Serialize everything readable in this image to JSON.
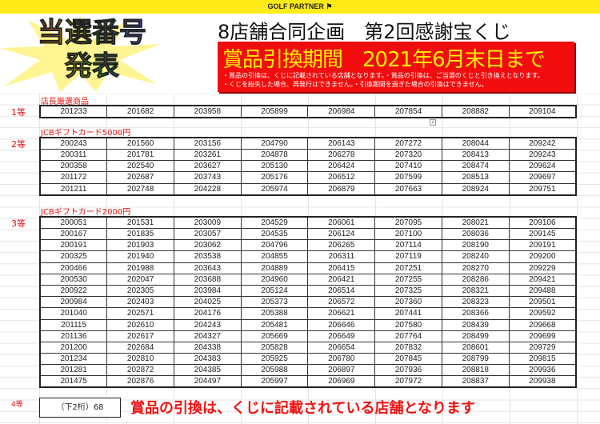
{
  "header": {
    "brand": "GOLF PARTNER",
    "logo_line1": "当選番号",
    "logo_line2": "発表",
    "title": "8店舗合同企画　第2回感謝宝くじ",
    "period": "賞品引換期間　2021年6月末日まで",
    "note1": "・賞品の引換は、くじに記載されている店舗となります。・賞品の引換は、ご当選のくじと引き換えとなります。",
    "note2": "・くじを紛失した場合、再発行はできません。・引換期間を過ぎた場合の引換はできません。",
    "colors": {
      "topbar": "#ffeb17",
      "redbox": "#f10d0d",
      "period": "#ffee00",
      "accent": "#e01010"
    }
  },
  "prizes": [
    {
      "rank": "1等",
      "name": "店長厳選商品",
      "rows": [
        [
          "201233",
          "201682",
          "203958",
          "205899",
          "206984",
          "207854",
          "208882",
          "209104"
        ]
      ]
    },
    {
      "rank": "2等",
      "name": "JCBギフトカード5000円",
      "rows": [
        [
          "200243",
          "201560",
          "203156",
          "204790",
          "206143",
          "207272",
          "208044",
          "209242"
        ],
        [
          "200311",
          "201781",
          "203261",
          "204878",
          "206278",
          "207320",
          "208413",
          "209243"
        ],
        [
          "200358",
          "202540",
          "203627",
          "205130",
          "206424",
          "207410",
          "208474",
          "209624"
        ],
        [
          "201172",
          "202687",
          "203743",
          "205176",
          "206512",
          "207599",
          "208513",
          "209697"
        ],
        [
          "201211",
          "202748",
          "204228",
          "205974",
          "206879",
          "207663",
          "208924",
          "209751"
        ]
      ]
    },
    {
      "rank": "3等",
      "name": "JCBギフトカード2000円",
      "rows": [
        [
          "200051",
          "201531",
          "203009",
          "204529",
          "206061",
          "207095",
          "208021",
          "209106"
        ],
        [
          "200167",
          "201835",
          "203057",
          "204535",
          "206124",
          "207100",
          "208036",
          "209145"
        ],
        [
          "200191",
          "201903",
          "203062",
          "204796",
          "206265",
          "207114",
          "208190",
          "209191"
        ],
        [
          "200325",
          "201940",
          "203538",
          "204855",
          "206311",
          "207119",
          "208240",
          "209200"
        ],
        [
          "200466",
          "201988",
          "203643",
          "204889",
          "206415",
          "207251",
          "208270",
          "209229"
        ],
        [
          "200530",
          "202047",
          "203688",
          "204960",
          "206421",
          "207255",
          "208286",
          "209421"
        ],
        [
          "200922",
          "202305",
          "203984",
          "205124",
          "206514",
          "207325",
          "208321",
          "209488"
        ],
        [
          "200984",
          "202403",
          "204025",
          "205373",
          "206572",
          "207360",
          "208323",
          "209501"
        ],
        [
          "201040",
          "202571",
          "204176",
          "205388",
          "206621",
          "207441",
          "208366",
          "209592"
        ],
        [
          "201115",
          "202610",
          "204243",
          "205481",
          "206646",
          "207580",
          "208439",
          "209668"
        ],
        [
          "201136",
          "202617",
          "204327",
          "205669",
          "206649",
          "207764",
          "208499",
          "209699"
        ],
        [
          "201200",
          "202684",
          "204338",
          "205828",
          "206654",
          "207832",
          "208601",
          "209729"
        ],
        [
          "201234",
          "202810",
          "204383",
          "205925",
          "206780",
          "207845",
          "208799",
          "209815"
        ],
        [
          "201281",
          "202872",
          "204385",
          "205988",
          "206897",
          "207936",
          "208818",
          "209936"
        ],
        [
          "201475",
          "202876",
          "204497",
          "205997",
          "206969",
          "207972",
          "208837",
          "209938"
        ]
      ]
    }
  ],
  "fourth": {
    "rank": "4等",
    "value": "（下2桁）68"
  },
  "footer_note": "賞品の引換は、くじに記載されている店舗となります"
}
